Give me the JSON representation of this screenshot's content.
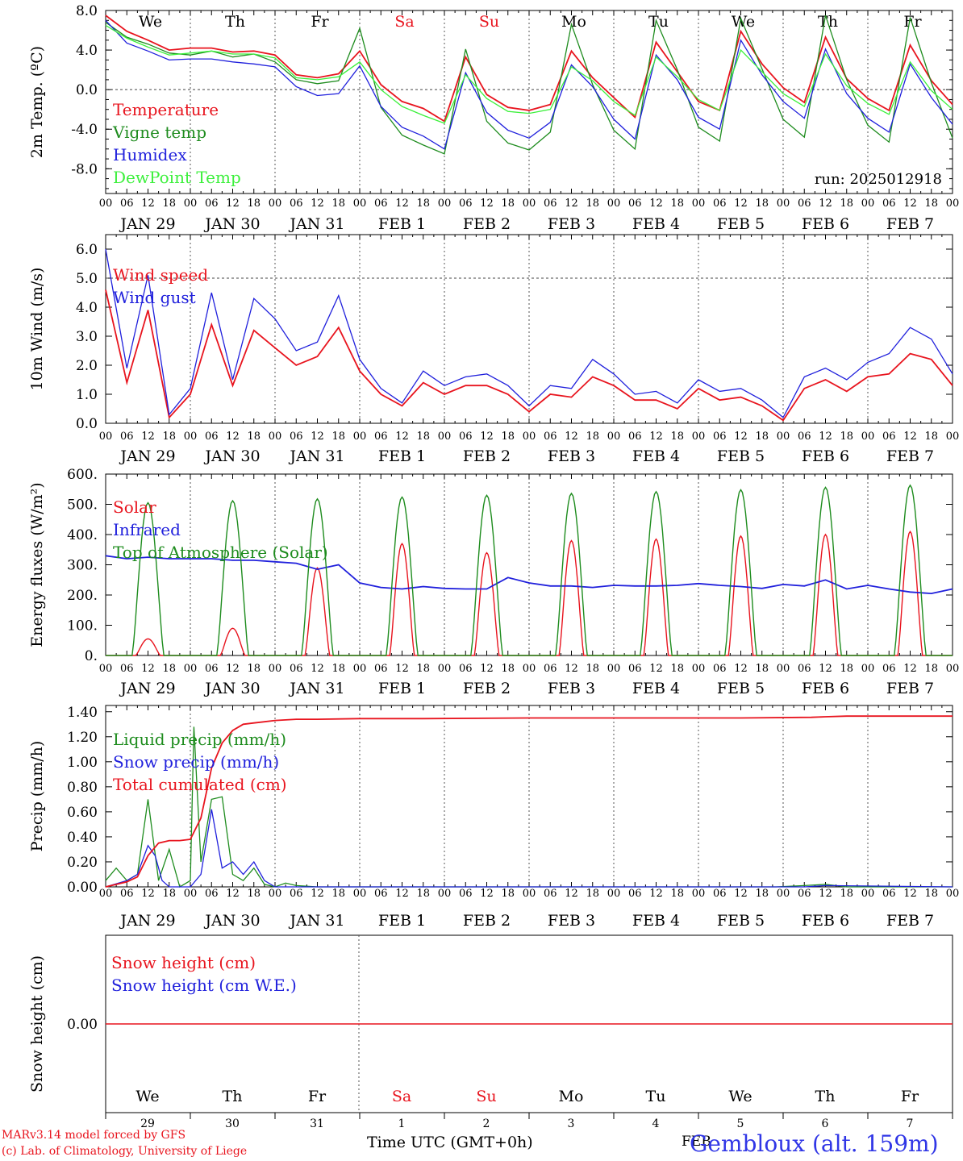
{
  "footer": {
    "model": "MARv3.14 model forced by GFS",
    "lab": "(c) Lab. of Climatology, University of Liege",
    "axis_title": "Time UTC (GMT+0h)",
    "feb_label": "FEB",
    "station": "Gembloux (alt. 159m)"
  },
  "colors": {
    "temperature": "#e8141e",
    "vigne": "#1e8c1e",
    "humidex": "#2020dc",
    "dewpoint": "#3cf03c",
    "weekend": "#e8141e",
    "weekday": "#000000"
  },
  "chart_data": [
    {
      "type": "line",
      "id": "temp",
      "ylabel": "2m Temp. (ºC)",
      "ylim": [
        -10.5,
        8
      ],
      "yticks": [
        8,
        4,
        0,
        -4,
        -8
      ],
      "ytick_labels": [
        "8.0",
        "4.0",
        "0.0",
        "-4.0",
        "-8.0"
      ],
      "ref_line": 0,
      "annotation": "run: 2025012918",
      "days": [
        "We",
        "Th",
        "Fr",
        "Sa",
        "Su",
        "Mo",
        "Tu",
        "We",
        "Th",
        "Fr"
      ],
      "day_colors": [
        "weekday",
        "weekday",
        "weekday",
        "weekend",
        "weekend",
        "weekday",
        "weekday",
        "weekday",
        "weekday",
        "weekday"
      ],
      "hour_labels": [
        "00",
        "06",
        "12",
        "18"
      ],
      "date_labels": [
        "JAN 29",
        "JAN 30",
        "JAN 31",
        "FEB  1",
        "FEB  2",
        "FEB  3",
        "FEB  4",
        "FEB  5",
        "FEB  6",
        "FEB  7"
      ],
      "x_hours": [
        0,
        6,
        12,
        18,
        24,
        30,
        36,
        42,
        48,
        54,
        60,
        66,
        72,
        78,
        84,
        90,
        96,
        102,
        108,
        114,
        120,
        126,
        132,
        138,
        144,
        150,
        156,
        162,
        168,
        174,
        180,
        186,
        192,
        198,
        204,
        210,
        216,
        222,
        228,
        234,
        240
      ],
      "series": [
        {
          "name": "Temperature",
          "color": "#e8141e",
          "y": [
            7.5,
            5.9,
            5.0,
            4.0,
            4.2,
            4.2,
            3.8,
            3.9,
            3.5,
            1.5,
            1.2,
            1.6,
            3.9,
            0.5,
            -1.2,
            -1.9,
            -3.2,
            3.3,
            -0.5,
            -1.8,
            -2.1,
            -1.5,
            3.9,
            1.2,
            -0.8,
            -2.8,
            4.8,
            1.8,
            -1.2,
            -2.1,
            5.9,
            2.6,
            0.2,
            -1.3,
            5.3,
            1.1,
            -0.9,
            -2.1,
            4.5,
            0.9,
            -1.5
          ]
        },
        {
          "name": "Vigne temp",
          "color": "#1e8c1e",
          "y": [
            6.8,
            5.3,
            4.6,
            3.7,
            3.5,
            3.9,
            3.3,
            3.6,
            2.8,
            1.0,
            0.6,
            0.9,
            6.2,
            -1.8,
            -4.6,
            -5.6,
            -6.5,
            4.1,
            -3.2,
            -5.4,
            -6.1,
            -4.3,
            6.6,
            0.5,
            -4.1,
            -6.0,
            7.0,
            2.0,
            -3.8,
            -5.2,
            7.2,
            2.1,
            -3.0,
            -4.8,
            7.5,
            1.0,
            -3.6,
            -5.3,
            7.3,
            0.7,
            -4.9
          ]
        },
        {
          "name": "Humidex",
          "color": "#2020dc",
          "y": [
            7.0,
            4.7,
            3.9,
            3.0,
            3.1,
            3.1,
            2.8,
            2.6,
            2.3,
            0.3,
            -0.6,
            -0.4,
            2.4,
            -1.7,
            -3.8,
            -4.7,
            -6.0,
            1.7,
            -2.3,
            -4.1,
            -4.9,
            -3.3,
            2.5,
            0.3,
            -3.0,
            -5.0,
            3.5,
            1.0,
            -2.8,
            -4.0,
            5.0,
            1.5,
            -1.2,
            -2.9,
            4.1,
            -0.4,
            -2.9,
            -4.3,
            2.6,
            -0.8,
            -3.5
          ]
        },
        {
          "name": "DewPoint Temp",
          "color": "#3cf03c",
          "y": [
            6.5,
            5.2,
            4.3,
            3.5,
            3.7,
            3.9,
            3.6,
            3.6,
            3.2,
            1.2,
            1.0,
            1.3,
            2.8,
            0.0,
            -1.7,
            -2.6,
            -3.4,
            1.5,
            -0.9,
            -2.2,
            -2.4,
            -2.0,
            2.3,
            0.9,
            -1.2,
            -2.6,
            3.3,
            1.3,
            -1.0,
            -2.1,
            4.0,
            1.8,
            -0.4,
            -1.7,
            3.6,
            0.4,
            -1.4,
            -2.5,
            2.8,
            -0.1,
            -2.0
          ]
        }
      ]
    },
    {
      "type": "line",
      "id": "wind",
      "ylabel": "10m Wind (m/s)",
      "ylim": [
        0,
        6.5
      ],
      "yticks": [
        6,
        5,
        4,
        3,
        2,
        1,
        0
      ],
      "ytick_labels": [
        "6.0",
        "5.0",
        "4.0",
        "3.0",
        "2.0",
        "1.0",
        "0.0"
      ],
      "ref_line": 5,
      "date_labels": [
        "JAN 29",
        "JAN 30",
        "JAN 31",
        "FEB  1",
        "FEB  2",
        "FEB  3",
        "FEB  4",
        "FEB  5",
        "FEB  6",
        "FEB  7"
      ],
      "x_hours": [
        0,
        6,
        12,
        18,
        24,
        30,
        36,
        42,
        48,
        54,
        60,
        66,
        72,
        78,
        84,
        90,
        96,
        102,
        108,
        114,
        120,
        126,
        132,
        138,
        144,
        150,
        156,
        162,
        168,
        174,
        180,
        186,
        192,
        198,
        204,
        210,
        216,
        222,
        228,
        234,
        240
      ],
      "series": [
        {
          "name": "Wind speed",
          "color": "#e8141e",
          "y": [
            4.6,
            1.4,
            3.9,
            0.2,
            1.0,
            3.4,
            1.3,
            3.2,
            2.6,
            2.0,
            2.3,
            3.3,
            1.8,
            1.0,
            0.6,
            1.4,
            1.0,
            1.3,
            1.3,
            1.0,
            0.4,
            1.0,
            0.9,
            1.6,
            1.3,
            0.8,
            0.8,
            0.5,
            1.2,
            0.8,
            0.9,
            0.6,
            0.1,
            1.2,
            1.5,
            1.1,
            1.6,
            1.7,
            2.4,
            2.2,
            1.3
          ]
        },
        {
          "name": "Wind gust",
          "color": "#2020dc",
          "y": [
            6.0,
            1.9,
            5.1,
            0.3,
            1.2,
            4.5,
            1.5,
            4.3,
            3.6,
            2.5,
            2.8,
            4.4,
            2.2,
            1.2,
            0.7,
            1.8,
            1.3,
            1.6,
            1.7,
            1.3,
            0.6,
            1.3,
            1.2,
            2.2,
            1.7,
            1.0,
            1.1,
            0.7,
            1.5,
            1.1,
            1.2,
            0.8,
            0.2,
            1.6,
            1.9,
            1.5,
            2.1,
            2.4,
            3.3,
            2.9,
            1.7
          ]
        }
      ]
    },
    {
      "type": "line",
      "id": "energy",
      "ylabel": "Energy fluxes (W/m²)",
      "ylim": [
        0,
        600
      ],
      "yticks": [
        600,
        500,
        400,
        300,
        200,
        100,
        0
      ],
      "ytick_labels": [
        "600.",
        "500.",
        "400.",
        "300.",
        "200.",
        "100.",
        "0."
      ],
      "date_labels": [
        "JAN 29",
        "JAN 30",
        "JAN 31",
        "FEB  1",
        "FEB  2",
        "FEB  3",
        "FEB  4",
        "FEB  5",
        "FEB  6",
        "FEB  7"
      ],
      "series": [
        {
          "name": "Solar",
          "color": "#e8141e",
          "peaks": [
            55,
            90,
            290,
            370,
            340,
            380,
            385,
            395,
            400,
            410
          ]
        },
        {
          "name": "Infrared",
          "color": "#2020dc",
          "y_hours": [
            0,
            6,
            12,
            18,
            24,
            30,
            36,
            42,
            48,
            54,
            60,
            66,
            72,
            78,
            84,
            90,
            96,
            102,
            108,
            114,
            120,
            126,
            132,
            138,
            144,
            150,
            156,
            162,
            168,
            174,
            180,
            186,
            192,
            198,
            204,
            210,
            216,
            222,
            228,
            234,
            240
          ],
          "y": [
            330,
            320,
            325,
            320,
            320,
            320,
            315,
            315,
            310,
            305,
            285,
            300,
            240,
            225,
            220,
            228,
            222,
            220,
            220,
            258,
            240,
            230,
            230,
            225,
            232,
            230,
            230,
            232,
            238,
            232,
            228,
            222,
            235,
            230,
            250,
            220,
            232,
            220,
            210,
            205,
            220
          ]
        },
        {
          "name": "Top of Atmosphere (Solar)",
          "color": "#1e8c1e",
          "peaks": [
            505,
            512,
            518,
            524,
            530,
            536,
            542,
            548,
            556,
            563
          ]
        }
      ]
    },
    {
      "type": "line",
      "id": "precip",
      "ylabel": "Precip (mm/h)",
      "ylim": [
        0,
        1.45
      ],
      "yticks": [
        1.4,
        1.2,
        1.0,
        0.8,
        0.6,
        0.4,
        0.2,
        0.0
      ],
      "ytick_labels": [
        "1.40",
        "1.20",
        "1.00",
        "0.80",
        "0.60",
        "0.40",
        "0.20",
        "0.00"
      ],
      "date_labels": [
        "JAN 29",
        "JAN 30",
        "JAN 31",
        "FEB  1",
        "FEB  2",
        "FEB  3",
        "FEB  4",
        "FEB  5",
        "FEB  6",
        "FEB  7"
      ],
      "series": [
        {
          "name": "Liquid precip (mm/h)",
          "color": "#1e8c1e",
          "x": [
            0,
            3,
            6,
            9,
            12,
            15,
            18,
            21,
            24,
            25,
            27,
            30,
            33,
            36,
            39,
            42,
            45,
            48,
            51,
            54,
            60,
            90,
            120,
            150,
            180,
            190,
            198,
            204,
            210,
            240
          ],
          "y": [
            0.05,
            0.15,
            0.05,
            0.1,
            0.7,
            0.05,
            0.3,
            0.0,
            0.05,
            1.28,
            0.2,
            0.7,
            0.72,
            0.1,
            0.05,
            0.15,
            0.02,
            0.0,
            0.03,
            0.01,
            0.0,
            0.0,
            0.0,
            0.0,
            0.0,
            0.0,
            0.01,
            0.02,
            0.0,
            0.0
          ]
        },
        {
          "name": "Snow precip (mm/h)",
          "color": "#2020dc",
          "x": [
            0,
            6,
            9,
            12,
            14,
            16,
            18,
            24,
            27,
            30,
            33,
            36,
            39,
            42,
            45,
            48,
            54,
            60,
            120,
            180,
            198,
            204,
            240
          ],
          "y": [
            0.0,
            0.05,
            0.1,
            0.33,
            0.25,
            0.05,
            0.0,
            0.0,
            0.1,
            0.62,
            0.15,
            0.2,
            0.1,
            0.2,
            0.05,
            0.0,
            0.0,
            0.0,
            0.0,
            0.0,
            0.0,
            0.01,
            0.0
          ]
        },
        {
          "name": "Total cumulated (cm)",
          "color": "#e8141e",
          "x": [
            0,
            6,
            9,
            12,
            15,
            18,
            21,
            24,
            27,
            30,
            33,
            36,
            39,
            42,
            45,
            48,
            54,
            60,
            72,
            90,
            120,
            150,
            180,
            200,
            204,
            210,
            240
          ],
          "y": [
            0.0,
            0.04,
            0.08,
            0.25,
            0.35,
            0.37,
            0.37,
            0.38,
            0.55,
            0.95,
            1.15,
            1.25,
            1.3,
            1.31,
            1.32,
            1.33,
            1.34,
            1.34,
            1.345,
            1.345,
            1.35,
            1.35,
            1.35,
            1.355,
            1.36,
            1.365,
            1.365
          ]
        }
      ]
    },
    {
      "type": "line",
      "id": "snow",
      "ylabel": "Snow height (cm)",
      "yticks": [
        0
      ],
      "ytick_labels": [
        "0.00"
      ],
      "days": [
        "We",
        "Th",
        "Fr",
        "Sa",
        "Su",
        "Mo",
        "Tu",
        "We",
        "Th",
        "Fr"
      ],
      "day_colors": [
        "weekday",
        "weekday",
        "weekday",
        "weekend",
        "weekend",
        "weekday",
        "weekday",
        "weekday",
        "weekday",
        "weekday"
      ],
      "day_numbers": [
        "29",
        "30",
        "31",
        "1",
        "2",
        "3",
        "4",
        "5",
        "6",
        "7"
      ],
      "series": [
        {
          "name": "Snow height (cm)",
          "color": "#e8141e",
          "y": [
            0,
            0
          ]
        },
        {
          "name": "Snow height (cm W.E.)",
          "color": "#2020dc",
          "y": [
            0,
            0
          ]
        }
      ]
    }
  ]
}
